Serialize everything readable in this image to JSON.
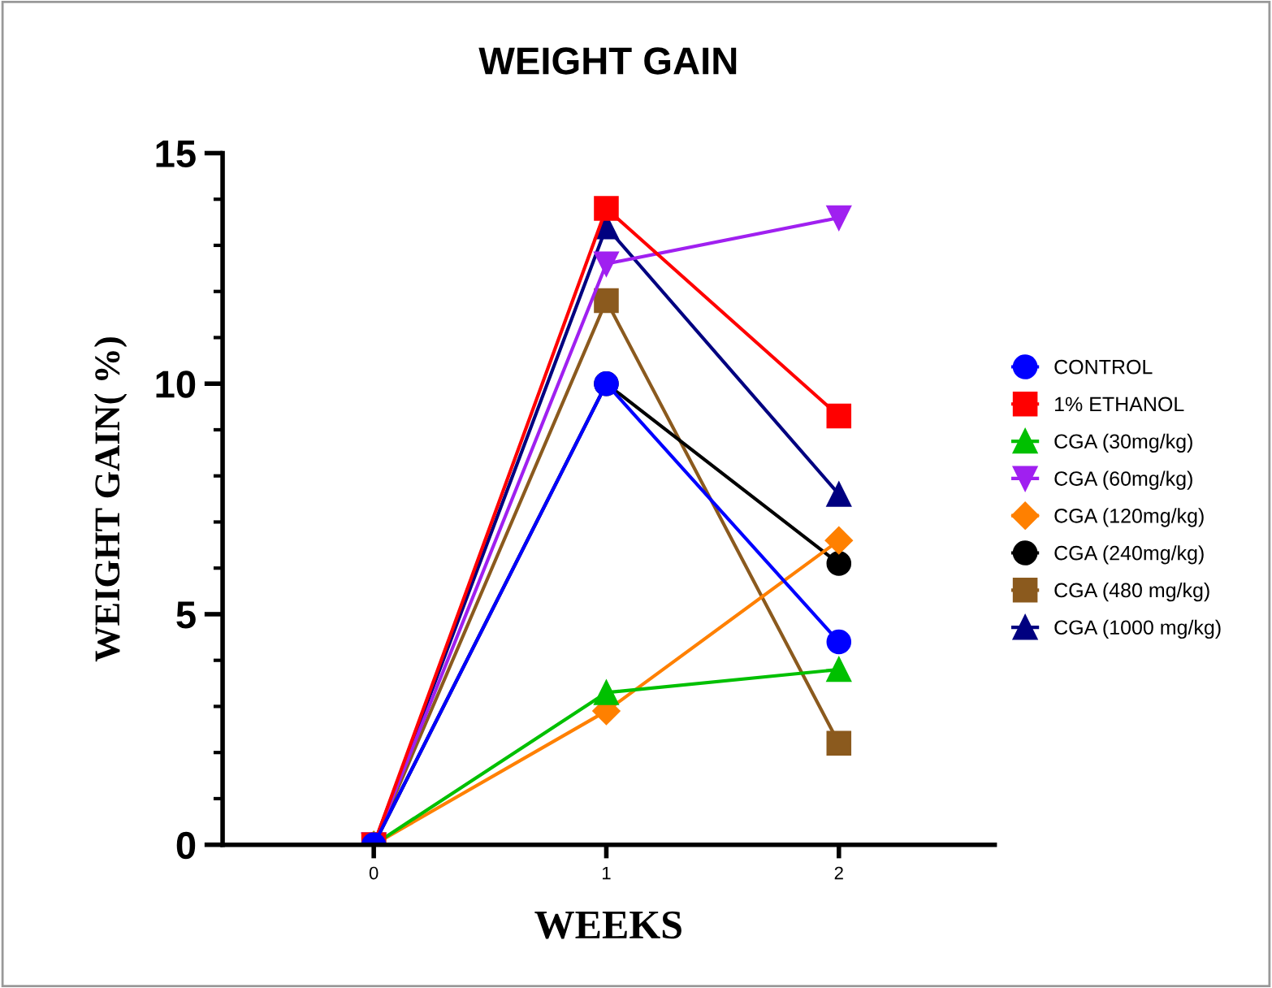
{
  "chart_data": {
    "type": "line",
    "title": "WEIGHT GAIN",
    "xlabel": "WEEKS",
    "ylabel": "WEIGHT GAIN( %)",
    "x": [
      0,
      1,
      2
    ],
    "xlim": [
      -0.65,
      2.67
    ],
    "xticks": [
      0,
      1,
      2
    ],
    "ylim": [
      0,
      15
    ],
    "yticks": [
      0,
      5,
      10,
      15
    ],
    "grid": false,
    "legend": "right",
    "series": [
      {
        "name": "CONTROL",
        "color": "#0000ff",
        "marker": "circle",
        "values": [
          0,
          10.0,
          4.4
        ]
      },
      {
        "name": "1% ETHANOL",
        "color": "#ff0000",
        "marker": "square",
        "values": [
          0,
          13.8,
          9.3
        ]
      },
      {
        "name": "CGA (30mg/kg)",
        "color": "#00c000",
        "marker": "triangle",
        "values": [
          0,
          3.3,
          3.8
        ]
      },
      {
        "name": "CGA (60mg/kg)",
        "color": "#a020f0",
        "marker": "triangle_down",
        "values": [
          0,
          12.6,
          13.6
        ]
      },
      {
        "name": "CGA (120mg/kg)",
        "color": "#ff8000",
        "marker": "diamond",
        "values": [
          0,
          2.9,
          6.6
        ]
      },
      {
        "name": "CGA (240mg/kg)",
        "color": "#000000",
        "marker": "circle",
        "values": [
          0,
          10.0,
          6.1
        ]
      },
      {
        "name": "CGA (480 mg/kg)",
        "color": "#8b5a1e",
        "marker": "square",
        "values": [
          0,
          11.8,
          2.2
        ]
      },
      {
        "name": "CGA (1000 mg/kg)",
        "color": "#000080",
        "marker": "triangle",
        "values": [
          0,
          13.4,
          7.6
        ]
      }
    ]
  }
}
